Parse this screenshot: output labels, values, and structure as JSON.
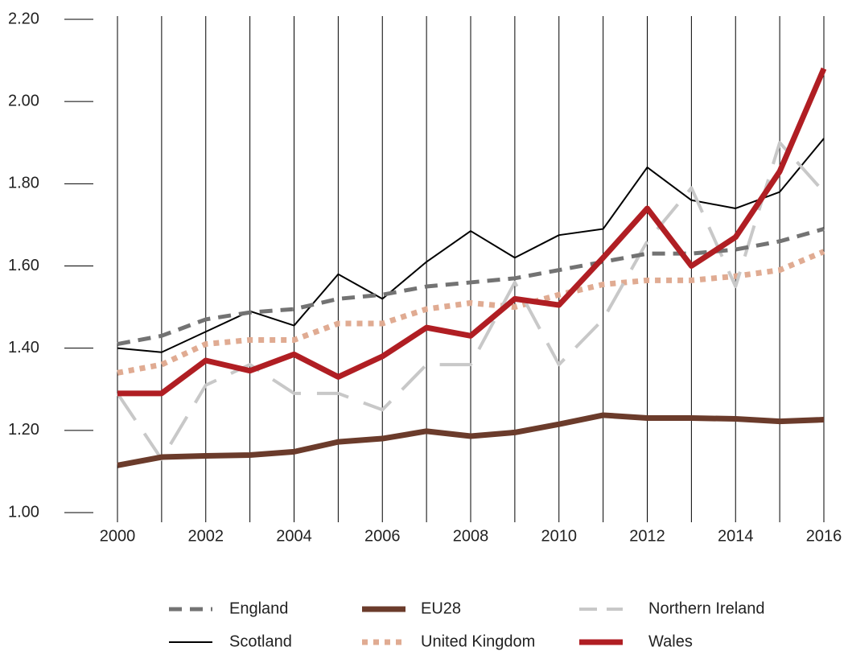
{
  "chart_data": {
    "type": "line",
    "x": [
      2000,
      2001,
      2002,
      2003,
      2004,
      2005,
      2006,
      2007,
      2008,
      2009,
      2010,
      2011,
      2012,
      2013,
      2014,
      2015,
      2016
    ],
    "xlim": [
      2000,
      2016
    ],
    "xticks": [
      2000,
      2002,
      2004,
      2006,
      2008,
      2010,
      2012,
      2014,
      2016
    ],
    "ylim": [
      1.0,
      2.2
    ],
    "yticks": [
      {
        "value": 1.0,
        "label": "1.00"
      },
      {
        "value": 1.2,
        "label": "1.20"
      },
      {
        "value": 1.4,
        "label": "1.40"
      },
      {
        "value": 1.6,
        "label": "1.60"
      },
      {
        "value": 1.8,
        "label": "1.80"
      },
      {
        "value": 2.0,
        "label": "2.00"
      },
      {
        "value": 2.2,
        "label": "2.20"
      }
    ],
    "grid": true,
    "legend": "bottom",
    "series": [
      {
        "name": "England",
        "color": "#737373",
        "line_style": "dashed",
        "values": [
          1.41,
          1.43,
          1.47,
          1.487,
          1.495,
          1.52,
          1.53,
          1.55,
          1.56,
          1.57,
          1.59,
          1.61,
          1.63,
          1.63,
          1.64,
          1.66,
          1.69
        ]
      },
      {
        "name": "EU28",
        "color": "#6b3b2b",
        "line_style": "thick",
        "values": [
          1.115,
          1.135,
          1.138,
          1.14,
          1.148,
          1.172,
          1.18,
          1.198,
          1.186,
          1.195,
          1.215,
          1.237,
          1.23,
          1.23,
          1.228,
          1.222,
          1.226
        ]
      },
      {
        "name": "Northern Ireland",
        "color": "#c8c8c8",
        "line_style": "long-dashed",
        "values": [
          1.29,
          1.13,
          1.31,
          1.36,
          1.29,
          1.29,
          1.25,
          1.36,
          1.36,
          1.56,
          1.36,
          1.47,
          1.66,
          1.79,
          1.55,
          1.9,
          1.78
        ]
      },
      {
        "name": "Scotland",
        "color": "#000000",
        "line_style": "thin",
        "values": [
          1.4,
          1.39,
          1.44,
          1.49,
          1.455,
          1.58,
          1.52,
          1.61,
          1.685,
          1.62,
          1.675,
          1.69,
          1.84,
          1.76,
          1.74,
          1.78,
          1.91
        ]
      },
      {
        "name": "United Kingdom",
        "color": "#e0ab92",
        "line_style": "dotted",
        "values": [
          1.34,
          1.36,
          1.41,
          1.42,
          1.42,
          1.46,
          1.46,
          1.495,
          1.51,
          1.5,
          1.53,
          1.555,
          1.565,
          1.565,
          1.575,
          1.59,
          1.635
        ]
      },
      {
        "name": "Wales",
        "color": "#b01e23",
        "line_style": "thick",
        "values": [
          1.29,
          1.29,
          1.37,
          1.345,
          1.385,
          1.33,
          1.38,
          1.45,
          1.43,
          1.52,
          1.505,
          1.62,
          1.74,
          1.6,
          1.67,
          1.83,
          2.08
        ]
      }
    ]
  }
}
